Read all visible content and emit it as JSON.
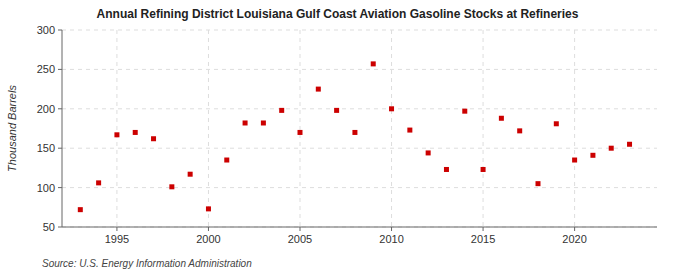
{
  "chart_data": {
    "type": "scatter",
    "title": "Annual Refining District Louisiana Gulf Coast Aviation Gasoline Stocks at Refineries",
    "ylabel": "Thousand Barrels",
    "annotations": [
      "Source: U.S. Energy Information Administration"
    ],
    "x": [
      1993,
      1994,
      1995,
      1996,
      1997,
      1998,
      1999,
      2000,
      2001,
      2002,
      2003,
      2004,
      2005,
      2006,
      2007,
      2008,
      2009,
      2010,
      2011,
      2012,
      2013,
      2014,
      2015,
      2016,
      2017,
      2018,
      2019,
      2020,
      2021,
      2022,
      2023
    ],
    "values": [
      72,
      106,
      167,
      170,
      162,
      101,
      117,
      73,
      135,
      182,
      182,
      198,
      170,
      225,
      198,
      170,
      257,
      200,
      173,
      144,
      123,
      197,
      123,
      188,
      172,
      105,
      181,
      135,
      141,
      150,
      155
    ],
    "color": "#cc0000",
    "marker": "square",
    "xlim": [
      1992,
      2024.5
    ],
    "xticks": [
      1995,
      2000,
      2005,
      2010,
      2015,
      2020
    ],
    "ylim": [
      50,
      300
    ],
    "yticks": [
      50,
      100,
      150,
      200,
      250,
      300
    ],
    "grid": true
  }
}
